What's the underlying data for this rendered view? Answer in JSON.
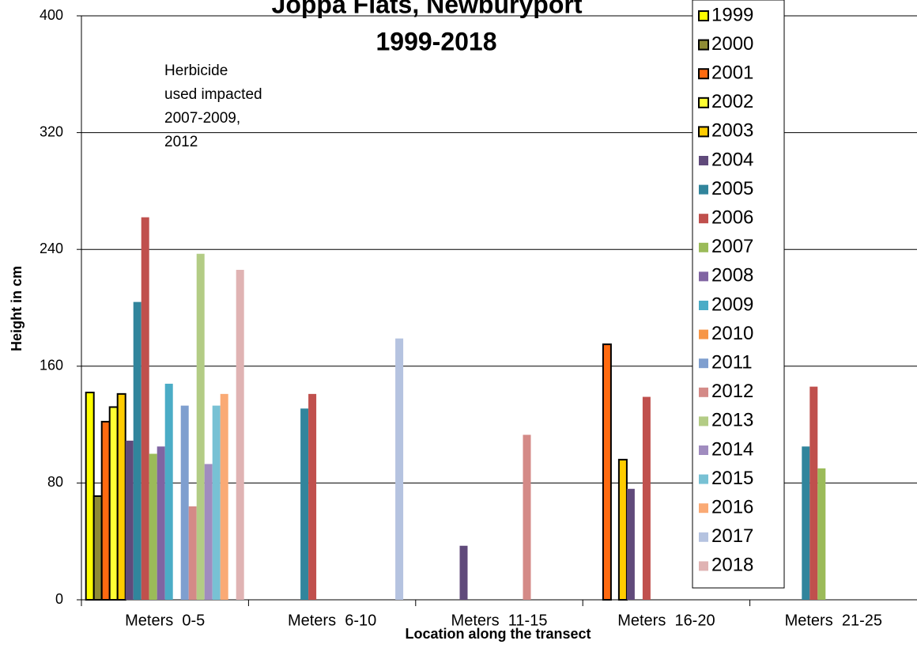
{
  "chart_data": {
    "type": "bar",
    "title": [
      "Joppa Flats, Newburyport",
      "1999-2018"
    ],
    "annotation": [
      "Herbicide",
      "used impacted",
      "2007-2009,",
      "2012"
    ],
    "x_label": "Location along the transect",
    "y_label": "Height in cm",
    "categories": [
      "Meters  0-5",
      "Meters  6-10",
      "Meters  11-15",
      "Meters  16-20",
      "Meters  21-25"
    ],
    "ylim": [
      0,
      400
    ],
    "yticks": [
      0,
      80,
      160,
      240,
      320,
      400
    ],
    "grid": true,
    "legend": "top-right",
    "series": [
      {
        "name": "1999",
        "color": "#ffff00",
        "outline": "#000000",
        "values": [
          142,
          null,
          null,
          null,
          null
        ]
      },
      {
        "name": "2000",
        "color": "#8f8c35",
        "outline": "#000000",
        "values": [
          71,
          null,
          null,
          null,
          null
        ]
      },
      {
        "name": "2001",
        "color": "#ff6a10",
        "outline": "#000000",
        "values": [
          122,
          null,
          null,
          175,
          null
        ]
      },
      {
        "name": "2002",
        "color": "#ffff33",
        "outline": "#000000",
        "values": [
          132,
          null,
          null,
          null,
          null
        ]
      },
      {
        "name": "2003",
        "color": "#ffcc00",
        "outline": "#000000",
        "values": [
          141,
          null,
          null,
          96,
          null
        ]
      },
      {
        "name": "2004",
        "color": "#604a7b",
        "values": [
          109,
          null,
          37,
          76,
          null
        ]
      },
      {
        "name": "2005",
        "color": "#31859c",
        "values": [
          204,
          131,
          null,
          null,
          105
        ]
      },
      {
        "name": "2006",
        "color": "#c0504d",
        "values": [
          262,
          141,
          null,
          139,
          146
        ]
      },
      {
        "name": "2007",
        "color": "#9bbb59",
        "values": [
          100,
          null,
          null,
          null,
          90
        ]
      },
      {
        "name": "2008",
        "color": "#8064a2",
        "values": [
          105,
          null,
          null,
          null,
          null
        ]
      },
      {
        "name": "2009",
        "color": "#4bacc6",
        "values": [
          148,
          null,
          null,
          null,
          null
        ]
      },
      {
        "name": "2010",
        "color": "#f79646",
        "values": [
          null,
          null,
          null,
          null,
          null
        ]
      },
      {
        "name": "2011",
        "color": "#7f9fcf",
        "values": [
          133,
          null,
          null,
          null,
          null
        ]
      },
      {
        "name": "2012",
        "color": "#d48a87",
        "values": [
          64,
          null,
          113,
          null,
          null
        ]
      },
      {
        "name": "2013",
        "color": "#b3cc85",
        "values": [
          237,
          null,
          null,
          null,
          null
        ]
      },
      {
        "name": "2014",
        "color": "#a08cbf",
        "values": [
          93,
          null,
          null,
          null,
          null
        ]
      },
      {
        "name": "2015",
        "color": "#78c1d4",
        "values": [
          133,
          null,
          null,
          null,
          null
        ]
      },
      {
        "name": "2016",
        "color": "#faaa75",
        "values": [
          141,
          null,
          null,
          null,
          null
        ]
      },
      {
        "name": "2017",
        "color": "#b5c3e0",
        "values": [
          null,
          179,
          null,
          null,
          null
        ]
      },
      {
        "name": "2018",
        "color": "#e0b3b3",
        "values": [
          226,
          null,
          null,
          null,
          null
        ]
      }
    ]
  }
}
